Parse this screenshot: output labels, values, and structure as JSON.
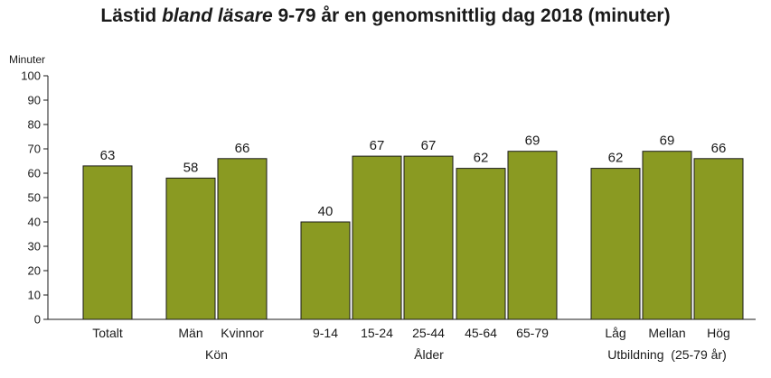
{
  "chart_data": {
    "type": "bar",
    "title": {
      "before": "Lästid ",
      "emphasis": "bland läsare",
      "after": " 9-79 år en genomsnittlig dag 2018 (minuter)"
    },
    "ylabel": "Minuter",
    "xlabel": "",
    "ylim": [
      0,
      100
    ],
    "yticks": [
      0,
      10,
      20,
      30,
      40,
      50,
      60,
      70,
      80,
      90,
      100
    ],
    "grid": false,
    "bar_color": "#8a9a22",
    "categories": [
      "Totalt",
      "Män",
      "Kvinnor",
      "9-14",
      "15-24",
      "25-44",
      "45-64",
      "65-79",
      "Låg",
      "Mellan",
      "Hög"
    ],
    "values": [
      63,
      58,
      66,
      40,
      67,
      67,
      62,
      69,
      62,
      69,
      66
    ],
    "groups": [
      {
        "label": "",
        "members": [
          "Totalt"
        ]
      },
      {
        "label": "Kön",
        "members": [
          "Män",
          "Kvinnor"
        ]
      },
      {
        "label": "Ålder",
        "members": [
          "9-14",
          "15-24",
          "25-44",
          "45-64",
          "65-79"
        ]
      },
      {
        "label": "Utbildning  (25-79 år)",
        "members": [
          "Låg",
          "Mellan",
          "Hög"
        ]
      }
    ]
  }
}
